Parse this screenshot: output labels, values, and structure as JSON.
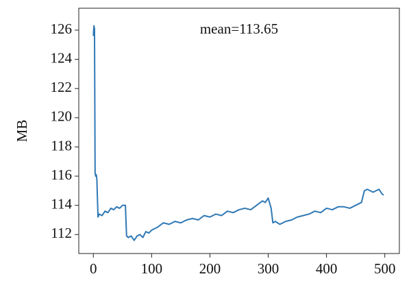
{
  "chart_data": {
    "type": "line",
    "annotation": "mean=113.65",
    "ylabel": "MB",
    "x": [
      0,
      1,
      2,
      3,
      4,
      5,
      6,
      8,
      10,
      15,
      20,
      25,
      30,
      35,
      40,
      45,
      50,
      55,
      57,
      60,
      65,
      70,
      75,
      80,
      85,
      90,
      95,
      100,
      110,
      120,
      130,
      140,
      150,
      160,
      170,
      180,
      190,
      200,
      210,
      220,
      230,
      240,
      250,
      260,
      270,
      280,
      290,
      295,
      300,
      305,
      308,
      312,
      320,
      330,
      340,
      350,
      360,
      370,
      380,
      390,
      400,
      410,
      420,
      430,
      440,
      450,
      460,
      465,
      470,
      480,
      490,
      495,
      498
    ],
    "series": [
      {
        "name": "MB",
        "color": "#2e78b5",
        "values": [
          125.6,
          126.3,
          126.1,
          116.2,
          116.0,
          116.1,
          115.8,
          113.2,
          113.4,
          113.3,
          113.6,
          113.5,
          113.8,
          113.7,
          113.9,
          113.8,
          114.0,
          114.0,
          111.9,
          111.8,
          111.9,
          111.6,
          111.9,
          112.0,
          111.8,
          112.2,
          112.1,
          112.3,
          112.5,
          112.8,
          112.7,
          112.9,
          112.8,
          113.0,
          113.1,
          113.0,
          113.3,
          113.2,
          113.4,
          113.3,
          113.6,
          113.5,
          113.7,
          113.8,
          113.7,
          114.0,
          114.3,
          114.2,
          114.5,
          113.8,
          112.8,
          112.9,
          112.7,
          112.9,
          113.0,
          113.2,
          113.3,
          113.4,
          113.6,
          113.5,
          113.8,
          113.7,
          113.9,
          113.9,
          113.8,
          114.0,
          114.2,
          115.0,
          115.1,
          114.9,
          115.1,
          114.8,
          114.7
        ]
      }
    ],
    "xlim": [
      -25,
      525
    ],
    "ylim": [
      110.7,
      127.5
    ],
    "xticks": [
      0,
      100,
      200,
      300,
      400,
      500
    ],
    "yticks": [
      112,
      114,
      116,
      118,
      120,
      122,
      124,
      126
    ]
  }
}
